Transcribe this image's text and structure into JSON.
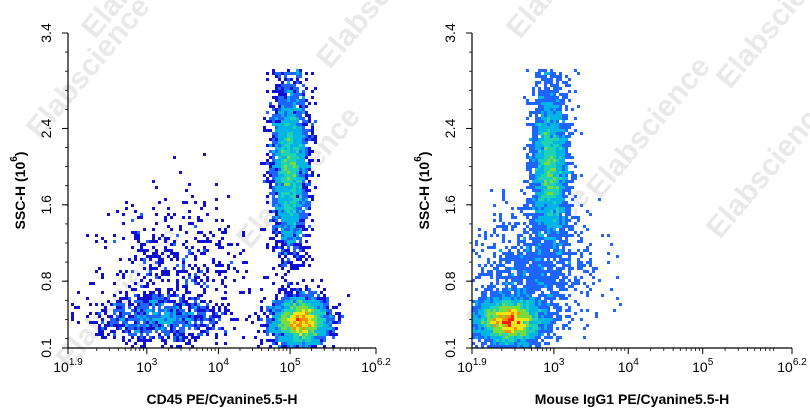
{
  "watermark": "Elabscience",
  "chart_data": [
    {
      "type": "scatter",
      "xlabel": "CD45 PE/Cyanine5.5-H",
      "ylabel": "SSC-H (10",
      "ylabel_sup": "6",
      "ylabel_close": ")",
      "x_scale": "log",
      "xlim": [
        79.4,
        1584893
      ],
      "ylim": [
        0.1,
        3.4
      ],
      "x_ticks": [
        {
          "value": 79.4,
          "base": "10",
          "exp": "1.9"
        },
        {
          "value": 1000,
          "base": "10",
          "exp": "3"
        },
        {
          "value": 10000,
          "base": "10",
          "exp": "4"
        },
        {
          "value": 100000,
          "base": "10",
          "exp": "5"
        },
        {
          "value": 1584893,
          "base": "10",
          "exp": "6.2"
        }
      ],
      "y_ticks": [
        {
          "value": 0.1,
          "label": "0.1"
        },
        {
          "value": 0.8,
          "label": "0.8"
        },
        {
          "value": 1.6,
          "label": "1.6"
        },
        {
          "value": 2.4,
          "label": "2.4"
        },
        {
          "value": 3.4,
          "label": "3.4"
        }
      ],
      "populations": [
        {
          "log_x_center": 5.15,
          "y_center": 0.38,
          "log_x_sd": 0.18,
          "y_sd": 0.12,
          "weight": 0.45
        },
        {
          "log_x_center": 5.0,
          "y_center": 2.0,
          "log_x_sd": 0.12,
          "y_sd": 0.42,
          "weight": 0.4
        },
        {
          "log_x_center": 3.2,
          "y_center": 0.4,
          "log_x_sd": 0.45,
          "y_sd": 0.12,
          "weight": 0.1
        },
        {
          "log_x_center": 3.4,
          "y_center": 1.0,
          "log_x_sd": 0.5,
          "y_sd": 0.35,
          "weight": 0.05
        }
      ]
    },
    {
      "type": "scatter",
      "xlabel": "Mouse IgG1 PE/Cyanine5.5-H",
      "ylabel": "SSC-H (10",
      "ylabel_sup": "6",
      "ylabel_close": ")",
      "x_scale": "log",
      "xlim": [
        79.4,
        1584893
      ],
      "ylim": [
        0.1,
        3.4
      ],
      "x_ticks": [
        {
          "value": 79.4,
          "base": "10",
          "exp": "1.9"
        },
        {
          "value": 1000,
          "base": "10",
          "exp": "3"
        },
        {
          "value": 10000,
          "base": "10",
          "exp": "4"
        },
        {
          "value": 100000,
          "base": "10",
          "exp": "5"
        },
        {
          "value": 1584893,
          "base": "10",
          "exp": "6.2"
        }
      ],
      "y_ticks": [
        {
          "value": 0.1,
          "label": "0.1"
        },
        {
          "value": 0.8,
          "label": "0.8"
        },
        {
          "value": 1.6,
          "label": "1.6"
        },
        {
          "value": 2.4,
          "label": "2.4"
        },
        {
          "value": 3.4,
          "label": "3.4"
        }
      ],
      "populations": [
        {
          "log_x_center": 2.4,
          "y_center": 0.38,
          "log_x_sd": 0.22,
          "y_sd": 0.12,
          "weight": 0.5
        },
        {
          "log_x_center": 2.95,
          "y_center": 2.0,
          "log_x_sd": 0.12,
          "y_sd": 0.42,
          "weight": 0.38
        },
        {
          "log_x_center": 2.7,
          "y_center": 0.9,
          "log_x_sd": 0.4,
          "y_sd": 0.3,
          "weight": 0.12
        }
      ]
    }
  ]
}
